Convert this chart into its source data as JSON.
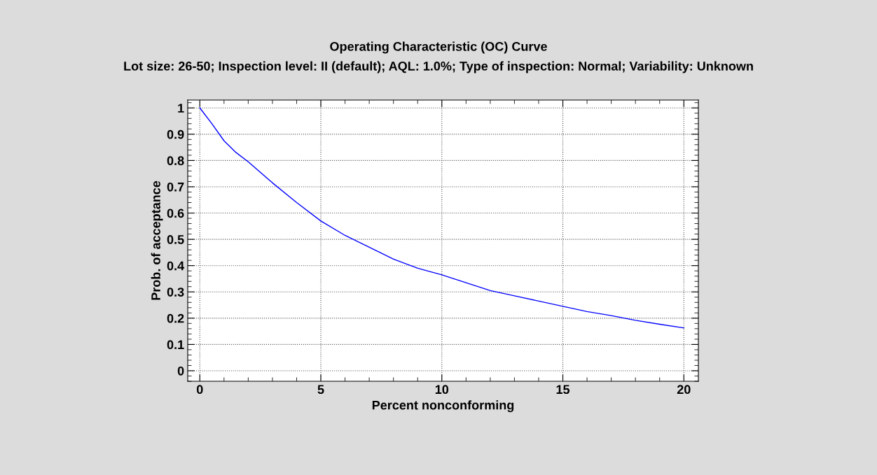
{
  "chart_data": {
    "type": "line",
    "title": "Operating Characteristic (OC) Curve",
    "subtitle": "Lot size: 26-50; Inspection level: II (default); AQL: 1.0%; Type of inspection: Normal; Variability: Unknown",
    "xlabel": "Percent nonconforming",
    "ylabel": "Prob. of acceptance",
    "x": [
      0,
      0.5,
      1,
      1.5,
      2,
      3,
      4,
      5,
      6,
      7,
      8,
      9,
      10,
      11,
      12,
      13,
      14,
      15,
      16,
      17,
      18,
      19,
      20
    ],
    "series": [
      {
        "color": "#0000ff",
        "values": [
          1.0,
          0.94,
          0.875,
          0.83,
          0.795,
          0.715,
          0.64,
          0.57,
          0.515,
          0.47,
          0.425,
          0.39,
          0.365,
          0.335,
          0.305,
          0.285,
          0.265,
          0.245,
          0.225,
          0.21,
          0.192,
          0.177,
          0.163
        ]
      }
    ],
    "xlim": [
      -0.5,
      20.6
    ],
    "ylim": [
      -0.04,
      1.03
    ],
    "xticks": [
      0,
      5,
      10,
      15,
      20
    ],
    "yticks": [
      0,
      0.1,
      0.2,
      0.3,
      0.4,
      0.5,
      0.6,
      0.7,
      0.8,
      0.9,
      1
    ],
    "grid": true,
    "line_style": "solid",
    "marker": "none"
  }
}
